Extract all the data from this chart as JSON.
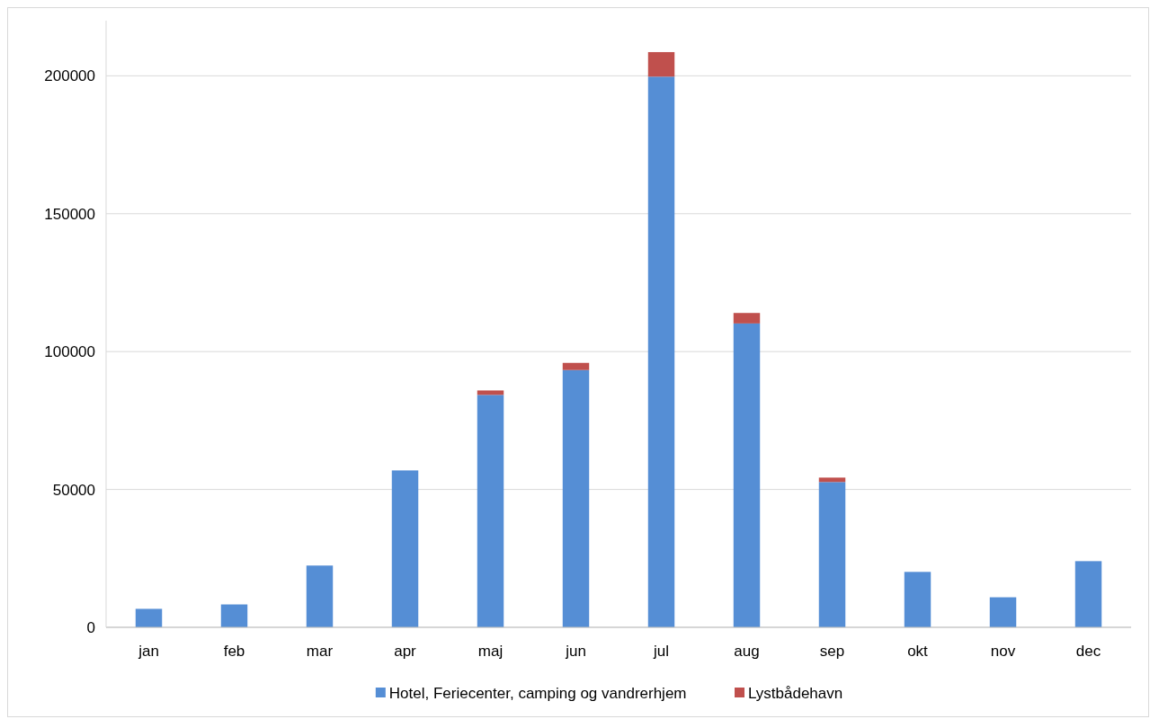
{
  "chart_data": {
    "type": "bar",
    "stacked": true,
    "categories": [
      "jan",
      "feb",
      "mar",
      "apr",
      "maj",
      "jun",
      "jul",
      "aug",
      "sep",
      "okt",
      "nov",
      "dec"
    ],
    "series": [
      {
        "name": "Hotel, Feriecenter, camping og vandrerhjem",
        "color": "#558ed5",
        "values": [
          6700,
          8300,
          22400,
          56900,
          84300,
          93300,
          199700,
          110200,
          52700,
          20100,
          10900,
          24000
        ]
      },
      {
        "name": "Lystbådehavn",
        "color": "#c0504d",
        "values": [
          null,
          null,
          null,
          null,
          1600,
          2600,
          8900,
          3800,
          1600,
          null,
          null,
          null
        ]
      }
    ],
    "ylim": [
      0,
      220000
    ],
    "yticks": [
      0,
      50000,
      100000,
      150000,
      200000
    ],
    "grid": "y",
    "legend": "bottom"
  }
}
